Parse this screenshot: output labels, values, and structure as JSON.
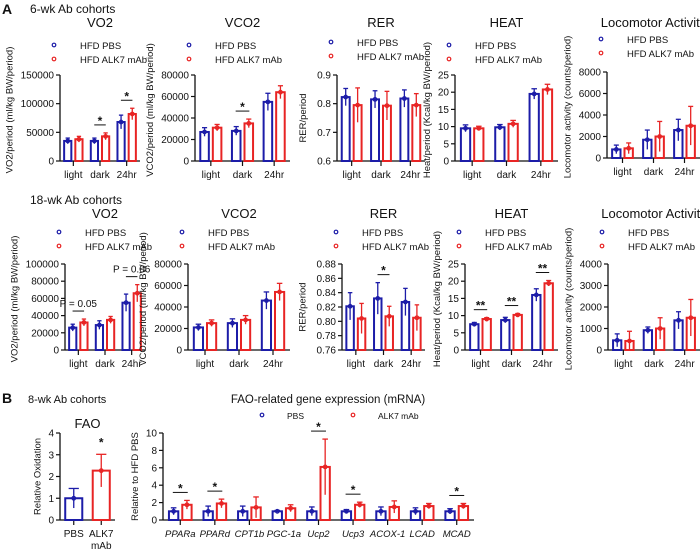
{
  "colors": {
    "pbs": "#1c1ca8",
    "alk7": "#e82424"
  },
  "panel_a": {
    "letter": "A",
    "row1_heading": "6-wk Ab cohorts",
    "row2_heading": "18-wk Ab cohorts"
  },
  "panel_b": {
    "letter": "B",
    "heading": "8-wk Ab cohorts",
    "gene_title": "FAO-related gene expression (mRNA)"
  },
  "chart_data": [
    {
      "id": "a1-vo2",
      "type": "bar",
      "title": "VO2",
      "ylabel": "VO2/period (ml/kg BW/period)",
      "ylim": [
        0,
        150000
      ],
      "yticks": [
        0,
        50000,
        100000,
        150000
      ],
      "ytick_labels": [
        "0",
        "50000",
        "100000",
        "150000"
      ],
      "categories": [
        "light",
        "dark",
        "24hr"
      ],
      "series": [
        {
          "name": "HFD PBS",
          "color": "#1c1ca8",
          "values": [
            35000,
            35000,
            68000
          ],
          "errors": [
            5000,
            5000,
            12000
          ]
        },
        {
          "name": "HFD ALK7 mAb",
          "color": "#e82424",
          "values": [
            38000,
            43000,
            82000
          ],
          "errors": [
            5000,
            6000,
            10000
          ]
        }
      ],
      "annotations": [
        {
          "category": 1,
          "text": "*"
        },
        {
          "category": 2,
          "text": "*"
        }
      ]
    },
    {
      "id": "a1-vco2",
      "type": "bar",
      "title": "VCO2",
      "ylabel": "VCO2/period (ml/kg BW/period)",
      "ylim": [
        0,
        80000
      ],
      "yticks": [
        0,
        20000,
        40000,
        60000,
        80000
      ],
      "ytick_labels": [
        "0",
        "20000",
        "40000",
        "60000",
        "80000"
      ],
      "categories": [
        "light",
        "dark",
        "24hr"
      ],
      "series": [
        {
          "name": "HFD PBS",
          "color": "#1c1ca8",
          "values": [
            27000,
            28000,
            55000
          ],
          "errors": [
            4000,
            4000,
            8000
          ]
        },
        {
          "name": "HFD ALK7 mAb",
          "color": "#e82424",
          "values": [
            31000,
            35000,
            64000
          ],
          "errors": [
            3000,
            4000,
            6000
          ]
        }
      ],
      "annotations": [
        {
          "category": 1,
          "text": "*"
        }
      ]
    },
    {
      "id": "a1-rer",
      "type": "bar",
      "title": "RER",
      "ylabel": "RER/period",
      "ylim": [
        0.6,
        0.9
      ],
      "yticks": [
        0.6,
        0.7,
        0.8,
        0.9
      ],
      "ytick_labels": [
        "0.6",
        "0.7",
        "0.8",
        "0.9"
      ],
      "categories": [
        "light",
        "dark",
        "24hr"
      ],
      "series": [
        {
          "name": "HFD PBS",
          "color": "#1c1ca8",
          "values": [
            0.823,
            0.815,
            0.818
          ],
          "errors": [
            0.03,
            0.03,
            0.03
          ]
        },
        {
          "name": "HFD ALK7 mAb",
          "color": "#e82424",
          "values": [
            0.795,
            0.793,
            0.795
          ],
          "errors": [
            0.06,
            0.05,
            0.04
          ]
        }
      ],
      "annotations": []
    },
    {
      "id": "a1-heat",
      "type": "bar",
      "title": "HEAT",
      "ylabel": "Heat/period (Kcal/kg BW/period)",
      "ylim": [
        0,
        25
      ],
      "yticks": [
        0,
        5,
        10,
        15,
        20,
        25
      ],
      "ytick_labels": [
        "0",
        "5",
        "10",
        "15",
        "20",
        "25"
      ],
      "categories": [
        "light",
        "dark",
        "24hr"
      ],
      "series": [
        {
          "name": "HFD PBS",
          "color": "#1c1ca8",
          "values": [
            9.5,
            9.8,
            19.5
          ],
          "errors": [
            1,
            0.8,
            1.5
          ]
        },
        {
          "name": "HFD ALK7 mAb",
          "color": "#e82424",
          "values": [
            9.5,
            10.8,
            20.8
          ],
          "errors": [
            0.6,
            1,
            1.5
          ]
        }
      ],
      "annotations": []
    },
    {
      "id": "a1-loco",
      "type": "bar",
      "title": "Locomotor Activity",
      "ylabel": "Locomotor activity (counts/period)",
      "ylim": [
        0,
        8000
      ],
      "yticks": [
        0,
        2000,
        4000,
        6000,
        8000
      ],
      "ytick_labels": [
        "0",
        "2000",
        "4000",
        "6000",
        "8000"
      ],
      "categories": [
        "light",
        "dark",
        "24hr"
      ],
      "series": [
        {
          "name": "HFD PBS",
          "color": "#1c1ca8",
          "values": [
            800,
            1700,
            2600
          ],
          "errors": [
            400,
            900,
            1000
          ]
        },
        {
          "name": "HFD ALK7 mAb",
          "color": "#e82424",
          "values": [
            900,
            2000,
            3000
          ],
          "errors": [
            500,
            1400,
            1800
          ]
        }
      ],
      "annotations": []
    },
    {
      "id": "a2-vo2",
      "type": "bar",
      "title": "VO2",
      "ylabel": "VO2/period (ml/kg BW/period)",
      "ylim": [
        0,
        100000
      ],
      "yticks": [
        0,
        20000,
        40000,
        60000,
        80000,
        100000
      ],
      "ytick_labels": [
        "0",
        "20000",
        "40000",
        "60000",
        "80000",
        "100000"
      ],
      "categories": [
        "light",
        "dark",
        "24hr"
      ],
      "series": [
        {
          "name": "HFD PBS",
          "color": "#1c1ca8",
          "values": [
            26000,
            29000,
            55000
          ],
          "errors": [
            4000,
            5000,
            10000
          ]
        },
        {
          "name": "HFD ALK7 mAb",
          "color": "#e82424",
          "values": [
            32000,
            35000,
            66000
          ],
          "errors": [
            4000,
            4000,
            10000
          ]
        }
      ],
      "annotations": [
        {
          "category": 0,
          "text": "P = 0.05"
        },
        {
          "category": 2,
          "text": "P = 0.06"
        }
      ]
    },
    {
      "id": "a2-vco2",
      "type": "bar",
      "title": "VCO2",
      "ylabel": "VCO2/period (ml/kg BW/period)",
      "ylim": [
        0,
        80000
      ],
      "yticks": [
        0,
        20000,
        40000,
        60000,
        80000
      ],
      "ytick_labels": [
        "0",
        "20000",
        "40000",
        "60000",
        "80000"
      ],
      "categories": [
        "light",
        "dark",
        "24hr"
      ],
      "series": [
        {
          "name": "HFD PBS",
          "color": "#1c1ca8",
          "values": [
            21000,
            25000,
            46000
          ],
          "errors": [
            3000,
            4000,
            8000
          ]
        },
        {
          "name": "HFD ALK7 mAb",
          "color": "#e82424",
          "values": [
            25000,
            28000,
            54000
          ],
          "errors": [
            3000,
            4000,
            8000
          ]
        }
      ],
      "annotations": []
    },
    {
      "id": "a2-rer",
      "type": "bar",
      "title": "RER",
      "ylabel": "RER/period",
      "ylim": [
        0.76,
        0.88
      ],
      "yticks": [
        0.76,
        0.78,
        0.8,
        0.82,
        0.84,
        0.86,
        0.88
      ],
      "ytick_labels": [
        "0.76",
        "0.78",
        "0.80",
        "0.82",
        "0.84",
        "0.86",
        "0.88"
      ],
      "categories": [
        "light",
        "dark",
        "24hr"
      ],
      "series": [
        {
          "name": "HFD PBS",
          "color": "#1c1ca8",
          "values": [
            0.821,
            0.832,
            0.827
          ],
          "errors": [
            0.019,
            0.022,
            0.019
          ]
        },
        {
          "name": "HFD ALK7 mAb",
          "color": "#e82424",
          "values": [
            0.804,
            0.807,
            0.805
          ],
          "errors": [
            0.021,
            0.014,
            0.018
          ]
        }
      ],
      "annotations": [
        {
          "category": 1,
          "text": "*"
        }
      ]
    },
    {
      "id": "a2-heat",
      "type": "bar",
      "title": "HEAT",
      "ylabel": "Heat/period (Kcal/kg BW/period)",
      "ylim": [
        0,
        25
      ],
      "yticks": [
        0,
        5,
        10,
        15,
        20,
        25
      ],
      "ytick_labels": [
        "0",
        "5",
        "10",
        "15",
        "20",
        "25"
      ],
      "categories": [
        "light",
        "dark",
        "24hr"
      ],
      "series": [
        {
          "name": "HFD PBS",
          "color": "#1c1ca8",
          "values": [
            7.5,
            8.7,
            16
          ],
          "errors": [
            0.5,
            0.8,
            1.8
          ]
        },
        {
          "name": "HFD ALK7 mAb",
          "color": "#e82424",
          "values": [
            9,
            10.2,
            19.4
          ],
          "errors": [
            0.4,
            0.4,
            0.8
          ]
        }
      ],
      "annotations": [
        {
          "category": 0,
          "text": "**"
        },
        {
          "category": 1,
          "text": "**"
        },
        {
          "category": 2,
          "text": "**"
        }
      ]
    },
    {
      "id": "a2-loco",
      "type": "bar",
      "title": "Locomotor Activity",
      "ylabel": "Locomotor activity (counts/period)",
      "ylim": [
        0,
        4000
      ],
      "yticks": [
        0,
        1000,
        2000,
        3000,
        4000
      ],
      "ytick_labels": [
        "0",
        "1000",
        "2000",
        "3000",
        "4000"
      ],
      "categories": [
        "light",
        "dark",
        "24hr"
      ],
      "series": [
        {
          "name": "HFD PBS",
          "color": "#1c1ca8",
          "values": [
            450,
            920,
            1380
          ],
          "errors": [
            300,
            150,
            400
          ]
        },
        {
          "name": "HFD ALK7 mAb",
          "color": "#e82424",
          "values": [
            420,
            1000,
            1500
          ],
          "errors": [
            450,
            500,
            850
          ]
        }
      ],
      "annotations": []
    },
    {
      "id": "b-fao",
      "type": "bar",
      "title": "FAO",
      "ylabel": "Relative Oxidation",
      "ylim": [
        0,
        4
      ],
      "yticks": [
        0,
        1,
        2,
        3,
        4
      ],
      "ytick_labels": [
        "0",
        "1",
        "2",
        "3",
        "4"
      ],
      "categories": [
        "PBS",
        "ALK7 mAb"
      ],
      "series": [
        {
          "color": "#1c1ca8",
          "values": [
            1.0,
            null
          ],
          "errors": [
            0.45,
            null
          ]
        },
        {
          "color": "#e82424",
          "values": [
            null,
            2.27
          ],
          "errors": [
            null,
            0.75
          ]
        }
      ],
      "annotations": [
        {
          "category": 1,
          "text": "*",
          "no_line": true
        }
      ]
    },
    {
      "id": "b-genes",
      "type": "bar",
      "title": "",
      "ylabel": "Relative to HFD PBS",
      "ylim": [
        0,
        10
      ],
      "yticks": [
        0,
        2,
        4,
        6,
        8,
        10
      ],
      "ytick_labels": [
        "0",
        "2",
        "4",
        "6",
        "8",
        "10"
      ],
      "categories": [
        "PPARa",
        "PPARd",
        "CPT1b",
        "PGC-1a",
        "Ucp2",
        "Ucp3",
        "ACOX-1",
        "LCAD",
        "MCAD"
      ],
      "series": [
        {
          "name": "PBS",
          "color": "#1c1ca8",
          "values": [
            1,
            1,
            1,
            1,
            1,
            1,
            1,
            1,
            1
          ],
          "errors": [
            0.4,
            0.6,
            0.6,
            0.1,
            0.5,
            0.2,
            0.5,
            0.4,
            0.3
          ]
        },
        {
          "name": "ALK7 mAb",
          "color": "#e82424",
          "values": [
            1.75,
            1.9,
            1.45,
            1.35,
            6.1,
            1.75,
            1.5,
            1.6,
            1.6
          ],
          "errors": [
            0.5,
            0.5,
            1.2,
            0.4,
            3.2,
            0.3,
            0.7,
            0.3,
            0.3
          ]
        }
      ],
      "annotations": [
        {
          "category": 0,
          "text": "*"
        },
        {
          "category": 1,
          "text": "*"
        },
        {
          "category": 4,
          "text": "*"
        },
        {
          "category": 5,
          "text": "*"
        },
        {
          "category": 8,
          "text": "*"
        }
      ]
    }
  ]
}
